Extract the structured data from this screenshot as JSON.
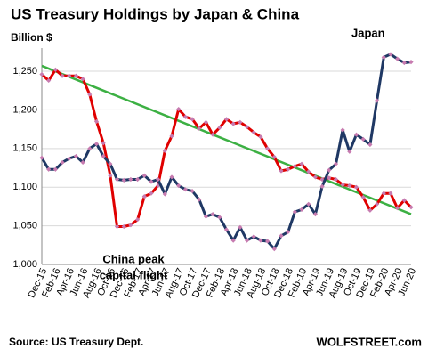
{
  "chart_data": {
    "type": "line",
    "title": "US Treasury Holdings by Japan & China",
    "subtitle": "Billion $",
    "source": "Source: US Treasury Dept.",
    "brand": "WOLFSTREET.com",
    "categories": [
      "Dec-15",
      null,
      "Feb-16",
      null,
      "Apr-16",
      null,
      "Jun-16",
      null,
      "Aug-16",
      null,
      "Oct-16",
      null,
      "Dec-16",
      null,
      "Feb-17",
      null,
      "Apr-17",
      null,
      "Jun-17",
      null,
      "Aug-17",
      null,
      "Oct-17",
      null,
      "Dec-17",
      null,
      "Feb-18",
      null,
      "Apr-18",
      null,
      "Jun-18",
      null,
      "Aug-18",
      null,
      "Oct-18",
      null,
      "Dec-18",
      null,
      "Feb-19",
      null,
      "Apr-19",
      null,
      "Jun-19",
      null,
      "Aug-19",
      null,
      "Oct-19",
      null,
      "Dec-19",
      null,
      "Feb-20",
      null,
      "Apr-20",
      null,
      "Jun-20"
    ],
    "series": [
      {
        "color": "#e00000",
        "values": [
          1246,
          1238,
          1252,
          1244,
          1244,
          1244,
          1240,
          1220,
          1185,
          1157,
          1115,
          1049,
          1049,
          1051,
          1058,
          1088,
          1092,
          1102,
          1147,
          1166,
          1201,
          1191,
          1188,
          1176,
          1184,
          1168,
          1177,
          1188,
          1182,
          1184,
          1178,
          1171,
          1165,
          1150,
          1139,
          1121,
          1123,
          1127,
          1130,
          1120,
          1113,
          1110,
          1112,
          1110,
          1103,
          1102,
          1100,
          1087,
          1070,
          1078,
          1092,
          1092,
          1073,
          1083,
          1074
        ]
      },
      {
        "color": "#1f3864",
        "values": [
          1138,
          1123,
          1123,
          1132,
          1137,
          1140,
          1132,
          1150,
          1156,
          1140,
          1130,
          1110,
          1109,
          1110,
          1110,
          1115,
          1107,
          1110,
          1091,
          1113,
          1102,
          1097,
          1095,
          1084,
          1062,
          1065,
          1061,
          1045,
          1031,
          1048,
          1031,
          1036,
          1031,
          1030,
          1020,
          1037,
          1042,
          1068,
          1071,
          1078,
          1065,
          1101,
          1122,
          1130,
          1174,
          1146,
          1168,
          1162,
          1155,
          1212,
          1268,
          1272,
          1266,
          1261,
          1262
        ]
      }
    ],
    "marker_color": "#c77bb0",
    "trendline": {
      "color": "#3cb043",
      "values": [
        1257,
        1065
      ]
    },
    "annotations": [
      {
        "text": "Japan",
        "color": "#000000"
      },
      {
        "text": "China peak",
        "color": "#e00000"
      },
      {
        "text": "capital flight",
        "color": "#e00000"
      }
    ],
    "ylim": [
      1000,
      1280
    ],
    "yticks": [
      {
        "value": 1000,
        "label": "1,000"
      },
      {
        "value": 1050,
        "label": "1,050"
      },
      {
        "value": 1100,
        "label": "1,100"
      },
      {
        "value": 1150,
        "label": "1,150"
      },
      {
        "value": 1200,
        "label": "1,200"
      },
      {
        "value": 1250,
        "label": "1,250"
      }
    ],
    "grid": true
  }
}
